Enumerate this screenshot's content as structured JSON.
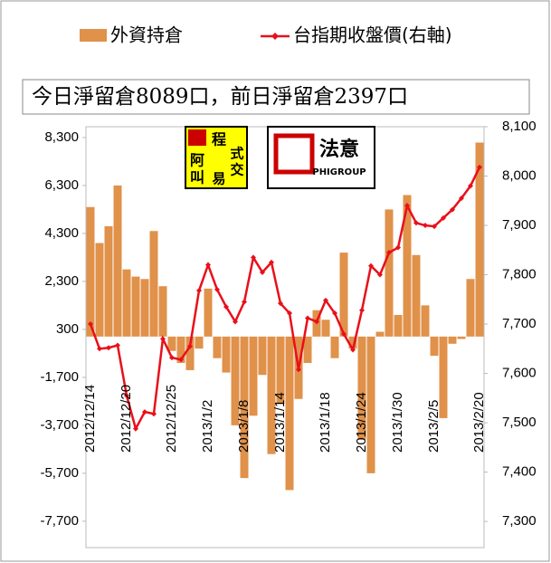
{
  "chart_data": {
    "type": "bar-line",
    "title": "今日淨留倉8089口，前日淨留倉2397口",
    "logos": [
      "阿",
      "叫",
      "程",
      "式",
      "交",
      "易",
      "法意",
      "PHIGROUP"
    ],
    "categories": [
      "2012/12/14",
      null,
      null,
      null,
      "2012/12/20",
      null,
      null,
      null,
      null,
      "2012/12/25",
      null,
      null,
      null,
      "2013/1/2",
      null,
      null,
      null,
      "2013/1/8",
      null,
      null,
      null,
      "2013/1/14",
      null,
      null,
      null,
      null,
      "2013/1/18",
      null,
      null,
      null,
      "2013/1/24",
      null,
      null,
      null,
      "2013/1/30",
      null,
      null,
      null,
      "2013/2/5",
      null,
      null,
      null,
      null,
      "2013/2/20"
    ],
    "series": [
      {
        "name": "外資持倉",
        "color": "#e0914a",
        "values": [
          5400,
          3900,
          4600,
          6300,
          2800,
          2500,
          2400,
          4400,
          2100,
          -600,
          -1100,
          -1400,
          -500,
          2000,
          -900,
          -1500,
          -3700,
          -5900,
          -3300,
          -1600,
          -4900,
          -2800,
          -6400,
          -2600,
          -1100,
          1100,
          700,
          -900,
          3500,
          -500,
          -4300,
          -5700,
          200,
          5300,
          900,
          5900,
          3400,
          1300,
          -800,
          -3400,
          -300,
          -100,
          2400,
          8089
        ]
      },
      {
        "name": "台指期收盤價(右軸)",
        "color": "#e8101a",
        "axis": "y2",
        "values": [
          7700,
          7650,
          7652,
          7657,
          7555,
          7488,
          7522,
          7518,
          7670,
          7632,
          7628,
          7655,
          7768,
          7820,
          7770,
          7735,
          7705,
          7745,
          7835,
          7805,
          7825,
          7742,
          7722,
          7608,
          7712,
          7705,
          7748,
          7722,
          7680,
          7648,
          7728,
          7818,
          7800,
          7845,
          7855,
          7940,
          7905,
          7900,
          7898,
          7915,
          7932,
          7955,
          7980,
          8018
        ]
      }
    ],
    "ylim": [
      -8800,
      8750
    ],
    "yticks": [
      {
        "value": 8300,
        "label": "8,300"
      },
      {
        "value": 6300,
        "label": "6,300"
      },
      {
        "value": 4300,
        "label": "4,300"
      },
      {
        "value": 2300,
        "label": "2,300"
      },
      300,
      {
        "value": -1700,
        "label": "-1,700"
      },
      {
        "value": -3700,
        "label": "-3,700"
      },
      {
        "value": -5700,
        "label": "-5,700"
      },
      {
        "value": -7700,
        "label": "-7,700"
      }
    ],
    "y2lim": [
      7247,
      8100
    ],
    "y2ticks": [
      {
        "value": 8100,
        "label": "8,100"
      },
      {
        "value": 8000,
        "label": "8,000"
      },
      {
        "value": 7900,
        "label": "7,900"
      },
      {
        "value": 7800,
        "label": "7,800"
      },
      {
        "value": 7700,
        "label": "7,700"
      },
      {
        "value": 7600,
        "label": "7,600"
      },
      {
        "value": 7500,
        "label": "7,500"
      },
      {
        "value": 7400,
        "label": "7,400"
      },
      {
        "value": 7300,
        "label": "7,300"
      }
    ],
    "grid": false
  }
}
